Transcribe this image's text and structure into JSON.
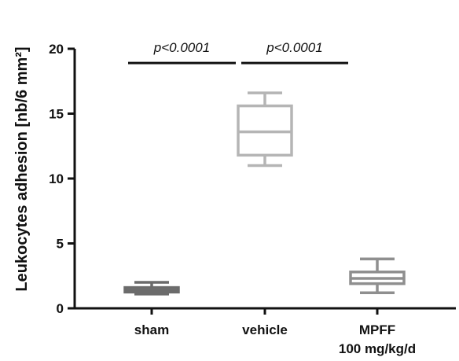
{
  "chart_data": {
    "type": "boxplot",
    "ylabel": "Leukocytes adhesion [nb/6 mm²]",
    "ylim": [
      0,
      20
    ],
    "yticks": [
      0,
      5,
      10,
      15,
      20
    ],
    "categories": [
      "sham",
      "vehicle",
      "MPFF 100 mg/kg/d"
    ],
    "category_lines": [
      [
        "sham"
      ],
      [
        "vehicle"
      ],
      [
        "MPFF",
        "100 mg/kg/d"
      ]
    ],
    "boxes": [
      {
        "category": "sham",
        "min": 1.1,
        "q1": 1.25,
        "median": 1.4,
        "q3": 1.6,
        "max": 2.0,
        "color": "#6b6b6b"
      },
      {
        "category": "vehicle",
        "min": 11.0,
        "q1": 11.8,
        "median": 13.6,
        "q3": 15.6,
        "max": 16.6,
        "color": "#b5b5b5"
      },
      {
        "category": "MPFF 100 mg/kg/d",
        "min": 1.2,
        "q1": 1.9,
        "median": 2.3,
        "q3": 2.8,
        "max": 3.8,
        "color": "#8f8f8f"
      }
    ],
    "annotations": [
      {
        "text": "p<0.0001",
        "from": "sham",
        "to": "vehicle",
        "y": 18.9
      },
      {
        "text": "p<0.0001",
        "from": "vehicle",
        "to": "MPFF 100 mg/kg/d",
        "y": 18.9
      }
    ],
    "grid": false
  }
}
